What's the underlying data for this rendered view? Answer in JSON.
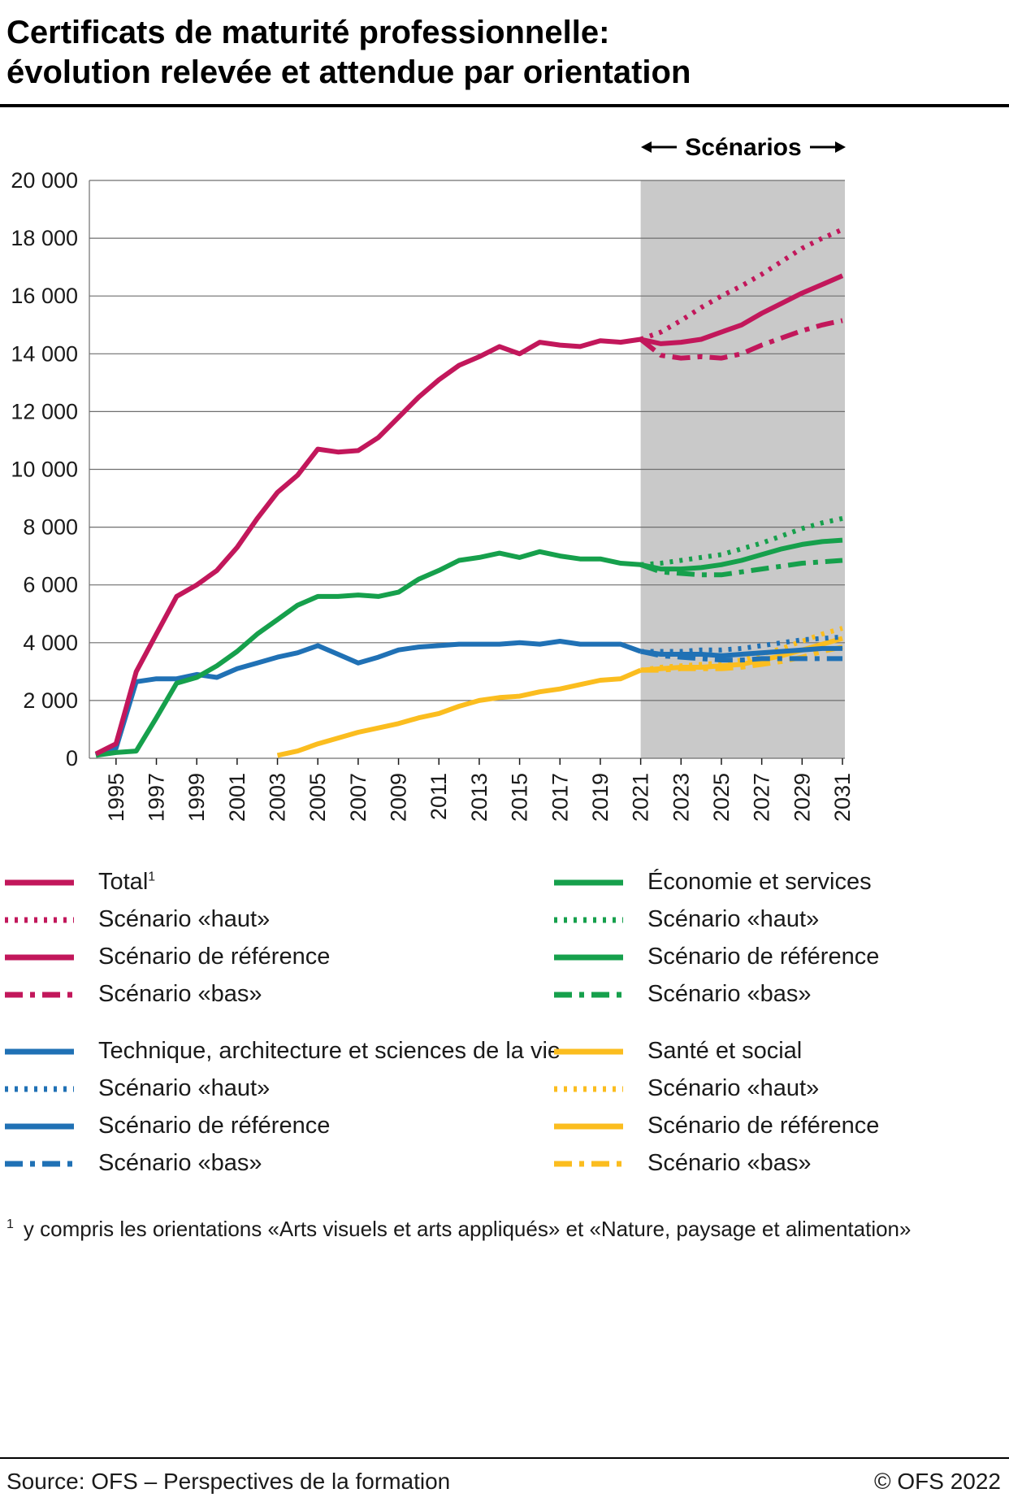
{
  "header": {
    "title_line1": "Certificats de maturité professionnelle:",
    "title_line2": "évolution relevée et attendue par orientation"
  },
  "scenarios_label": "Scénarios",
  "colors": {
    "total": "#c2175b",
    "economie": "#16a04c",
    "technique": "#2071b5",
    "sante": "#fbbd1f",
    "scenario_bg": "#c9c9c9",
    "grid": "#6f6f6f",
    "axis_text": "#1a1a1a"
  },
  "chart_data": {
    "type": "line",
    "title": "Certificats de maturité professionnelle: évolution relevée et attendue par orientation",
    "ylim": [
      0,
      20000
    ],
    "yticks": [
      0,
      2000,
      4000,
      6000,
      8000,
      10000,
      12000,
      14000,
      16000,
      18000,
      20000
    ],
    "ytick_labels": [
      "0",
      "2 000",
      "4 000",
      "6 000",
      "8 000",
      "10 000",
      "12 000",
      "14 000",
      "16 000",
      "18 000",
      "20 000"
    ],
    "x_range": [
      1994,
      2031
    ],
    "xticks": [
      1995,
      1997,
      1999,
      2001,
      2003,
      2005,
      2007,
      2009,
      2011,
      2013,
      2015,
      2017,
      2019,
      2021,
      2023,
      2025,
      2027,
      2029,
      2031
    ],
    "scenario_region": [
      2021,
      2031
    ],
    "grid": "horizontal",
    "legend_position": "bottom",
    "series": [
      {
        "id": "sante-haut",
        "name": "Santé et social – Scénario «haut»",
        "color_key": "sante",
        "style": "dotted",
        "year_start": 2021,
        "values": [
          3050,
          3150,
          3200,
          3250,
          3300,
          3400,
          3600,
          3800,
          4050,
          4300,
          4500
        ]
      },
      {
        "id": "sante-bas",
        "name": "Santé et social – Scénario «bas»",
        "color_key": "sante",
        "style": "dashdot",
        "year_start": 2021,
        "values": [
          3050,
          3050,
          3100,
          3100,
          3100,
          3150,
          3250,
          3350,
          3500,
          3700,
          3850
        ]
      },
      {
        "id": "sante-reference",
        "name": "Santé et social – Scénario de référence",
        "color_key": "sante",
        "style": "solid",
        "year_start": 2021,
        "values": [
          3050,
          3100,
          3150,
          3150,
          3200,
          3250,
          3400,
          3550,
          3750,
          3950,
          4150
        ]
      },
      {
        "id": "sante-observe",
        "name": "Santé et social (relevé)",
        "color_key": "sante",
        "style": "solid",
        "year_start": 2003,
        "values": [
          100,
          250,
          500,
          700,
          900,
          1050,
          1200,
          1400,
          1550,
          1800,
          2000,
          2100,
          2150,
          2300,
          2400,
          2550,
          2700,
          2750,
          3050
        ]
      },
      {
        "id": "technique-haut",
        "name": "Technique, architecture et sciences de la vie – Scénario «haut»",
        "color_key": "technique",
        "style": "dotted",
        "year_start": 2021,
        "values": [
          3700,
          3700,
          3700,
          3750,
          3750,
          3800,
          3900,
          4000,
          4100,
          4150,
          4200
        ]
      },
      {
        "id": "technique-bas",
        "name": "Technique, architecture et sciences de la vie – Scénario «bas»",
        "color_key": "technique",
        "style": "dashdot",
        "year_start": 2021,
        "values": [
          3700,
          3550,
          3500,
          3450,
          3400,
          3400,
          3450,
          3450,
          3450,
          3450,
          3450
        ]
      },
      {
        "id": "technique-reference",
        "name": "Technique, architecture et sciences de la vie – Scénario de référence",
        "color_key": "technique",
        "style": "solid",
        "year_start": 2021,
        "values": [
          3700,
          3600,
          3600,
          3600,
          3550,
          3600,
          3650,
          3700,
          3750,
          3800,
          3800
        ]
      },
      {
        "id": "technique-observe",
        "name": "Technique, architecture et sciences de la vie (relevé)",
        "color_key": "technique",
        "style": "solid",
        "year_start": 1994,
        "values": [
          100,
          350,
          2650,
          2750,
          2750,
          2900,
          2800,
          3100,
          3300,
          3500,
          3650,
          3900,
          3600,
          3300,
          3500,
          3750,
          3850,
          3900,
          3950,
          3950,
          3950,
          4000,
          3950,
          4050,
          3950,
          3950,
          3950,
          3700
        ]
      },
      {
        "id": "economie-haut",
        "name": "Économie et services – Scénario «haut»",
        "color_key": "economie",
        "style": "dotted",
        "year_start": 2021,
        "values": [
          6700,
          6750,
          6850,
          6950,
          7050,
          7250,
          7450,
          7700,
          7950,
          8150,
          8300
        ]
      },
      {
        "id": "economie-bas",
        "name": "Économie et services – Scénario «bas»",
        "color_key": "economie",
        "style": "dashdot",
        "year_start": 2021,
        "values": [
          6700,
          6450,
          6400,
          6350,
          6350,
          6450,
          6550,
          6650,
          6750,
          6800,
          6850
        ]
      },
      {
        "id": "economie-reference",
        "name": "Économie et services – Scénario de référence",
        "color_key": "economie",
        "style": "solid",
        "year_start": 2021,
        "values": [
          6700,
          6550,
          6550,
          6600,
          6700,
          6850,
          7050,
          7250,
          7400,
          7500,
          7550
        ]
      },
      {
        "id": "economie-observe",
        "name": "Économie et services (relevé)",
        "color_key": "economie",
        "style": "solid",
        "year_start": 1994,
        "values": [
          100,
          200,
          250,
          1400,
          2600,
          2800,
          3200,
          3700,
          4300,
          4800,
          5300,
          5600,
          5600,
          5650,
          5600,
          5750,
          6200,
          6500,
          6850,
          6950,
          7100,
          6950,
          7150,
          7000,
          6900,
          6900,
          6750,
          6700
        ]
      },
      {
        "id": "total-haut",
        "name": "Total – Scénario «haut»",
        "color_key": "total",
        "style": "dotted",
        "year_start": 2021,
        "values": [
          14500,
          14750,
          15150,
          15600,
          16000,
          16350,
          16750,
          17200,
          17650,
          18000,
          18300
        ]
      },
      {
        "id": "total-bas",
        "name": "Total – Scénario «bas»",
        "color_key": "total",
        "style": "dashdot",
        "year_start": 2021,
        "values": [
          14500,
          13950,
          13850,
          13900,
          13850,
          14000,
          14300,
          14550,
          14800,
          15000,
          15150
        ]
      },
      {
        "id": "total-reference",
        "name": "Total – Scénario de référence",
        "color_key": "total",
        "style": "solid",
        "year_start": 2021,
        "values": [
          14500,
          14350,
          14400,
          14500,
          14750,
          15000,
          15400,
          15750,
          16100,
          16400,
          16700
        ]
      },
      {
        "id": "total-observe",
        "name": "Total (relevé)",
        "color_key": "total",
        "style": "solid",
        "year_start": 1994,
        "values": [
          150,
          500,
          3000,
          4300,
          5600,
          6000,
          6500,
          7300,
          8300,
          9200,
          9800,
          10700,
          10600,
          10650,
          11100,
          11800,
          12500,
          13100,
          13600,
          13900,
          14250,
          14000,
          14400,
          14300,
          14250,
          14450,
          14400,
          14500
        ]
      }
    ]
  },
  "legend": {
    "left": [
      {
        "label": "Total",
        "sup": "1",
        "color_key": "total",
        "style": "solid"
      },
      {
        "label": "Scénario «haut»",
        "color_key": "total",
        "style": "dotted"
      },
      {
        "label": "Scénario de référence",
        "color_key": "total",
        "style": "solid"
      },
      {
        "label": "Scénario «bas»",
        "color_key": "total",
        "style": "dashdot"
      },
      {
        "label": "Technique, architecture et sciences de la vie",
        "color_key": "technique",
        "style": "solid",
        "gap_before": true
      },
      {
        "label": "Scénario «haut»",
        "color_key": "technique",
        "style": "dotted"
      },
      {
        "label": "Scénario de référence",
        "color_key": "technique",
        "style": "solid"
      },
      {
        "label": "Scénario «bas»",
        "color_key": "technique",
        "style": "dashdot"
      }
    ],
    "right": [
      {
        "label": "Économie et services",
        "color_key": "economie",
        "style": "solid"
      },
      {
        "label": "Scénario «haut»",
        "color_key": "economie",
        "style": "dotted"
      },
      {
        "label": "Scénario de référence",
        "color_key": "economie",
        "style": "solid"
      },
      {
        "label": "Scénario «bas»",
        "color_key": "economie",
        "style": "dashdot"
      },
      {
        "label": "Santé et social",
        "color_key": "sante",
        "style": "solid",
        "gap_before": true
      },
      {
        "label": "Scénario «haut»",
        "color_key": "sante",
        "style": "dotted"
      },
      {
        "label": "Scénario de référence",
        "color_key": "sante",
        "style": "solid"
      },
      {
        "label": "Scénario «bas»",
        "color_key": "sante",
        "style": "dashdot"
      }
    ]
  },
  "footnote": {
    "marker": "1",
    "text": "y compris les orientations «Arts visuels et arts appliqués» et «Nature, paysage et alimentation»"
  },
  "footer": {
    "source": "Source: OFS – Perspectives de la formation",
    "copyright": "© OFS 2022"
  }
}
